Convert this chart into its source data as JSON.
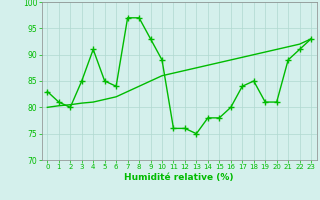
{
  "x": [
    0,
    1,
    2,
    3,
    4,
    5,
    6,
    7,
    8,
    9,
    10,
    11,
    12,
    13,
    14,
    15,
    16,
    17,
    18,
    19,
    20,
    21,
    22,
    23
  ],
  "y_main": [
    83,
    81,
    80,
    85,
    91,
    85,
    84,
    97,
    97,
    93,
    89,
    76,
    76,
    75,
    78,
    78,
    80,
    84,
    85,
    81,
    81,
    89,
    91,
    93
  ],
  "y_trend": [
    80,
    80.3,
    80.5,
    80.8,
    81,
    81.5,
    82,
    83,
    84,
    85,
    86,
    86.5,
    87,
    87.5,
    88,
    88.5,
    89,
    89.5,
    90,
    90.5,
    91,
    91.5,
    92,
    93
  ],
  "xlim": [
    -0.5,
    23.5
  ],
  "ylim": [
    70,
    100
  ],
  "yticks": [
    70,
    75,
    80,
    85,
    90,
    95,
    100
  ],
  "xticks": [
    0,
    1,
    2,
    3,
    4,
    5,
    6,
    7,
    8,
    9,
    10,
    11,
    12,
    13,
    14,
    15,
    16,
    17,
    18,
    19,
    20,
    21,
    22,
    23
  ],
  "xlabel": "Humidité relative (%)",
  "line_color": "#00bb00",
  "bg_color": "#d4f0ec",
  "grid_color": "#b0d8d0",
  "spine_color": "#888888"
}
